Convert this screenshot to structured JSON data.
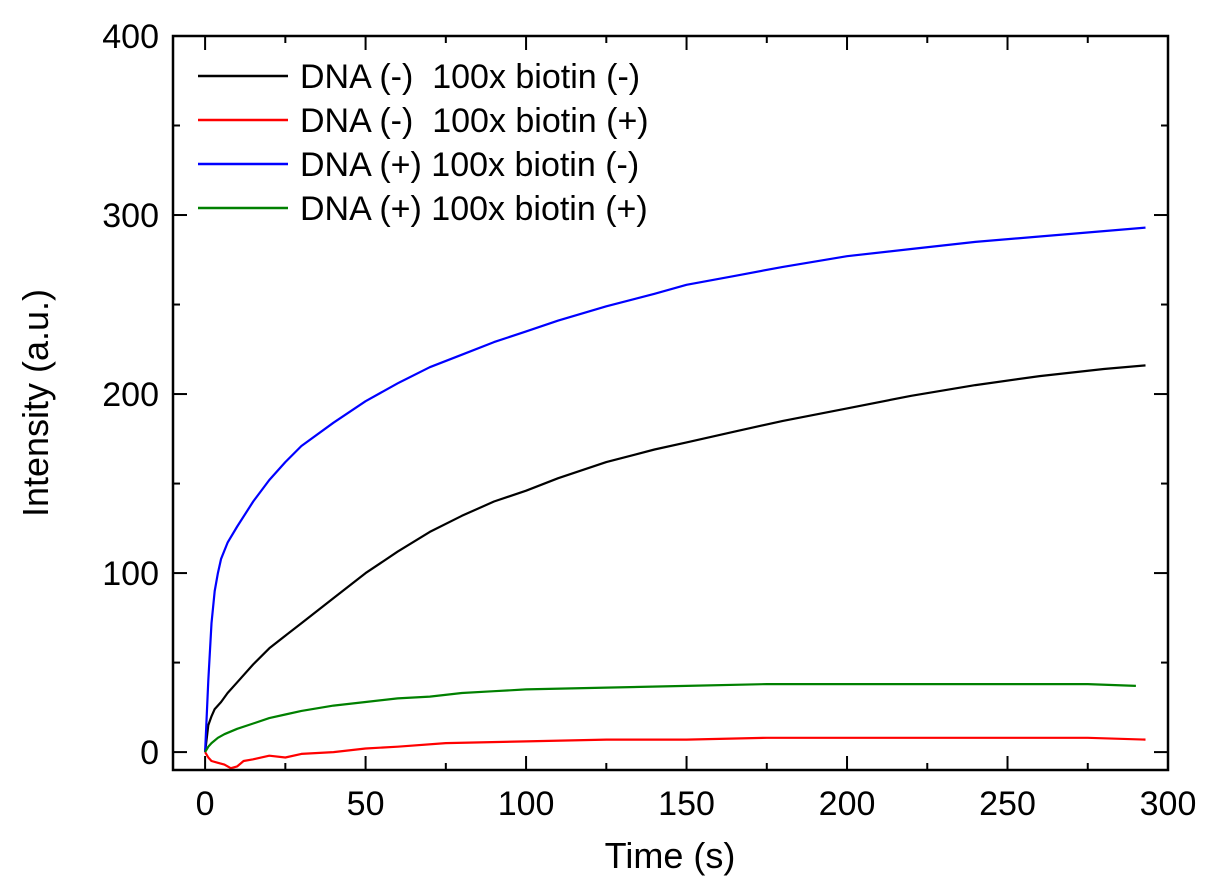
{
  "chart_data": {
    "type": "line",
    "xlabel": "Time (s)",
    "ylabel": "Intensity (a.u.)",
    "xlim": [
      -10,
      300
    ],
    "ylim": [
      -10,
      400
    ],
    "x_ticks": [
      0,
      50,
      100,
      150,
      200,
      250,
      300
    ],
    "x_tick_labels": [
      "0",
      "50",
      "100",
      "150",
      "200",
      "250",
      "300"
    ],
    "y_ticks": [
      0,
      100,
      200,
      300,
      400
    ],
    "y_tick_labels": [
      "0",
      "100",
      "200",
      "300",
      "400"
    ],
    "grid": false,
    "legend_position": "top-left",
    "series": [
      {
        "name": "DNA (-)  100x biotin (-)",
        "color": "#000000",
        "x": [
          0,
          1,
          2,
          3,
          5,
          7,
          10,
          15,
          20,
          25,
          30,
          40,
          50,
          60,
          70,
          80,
          90,
          100,
          110,
          125,
          140,
          150,
          165,
          180,
          200,
          220,
          240,
          260,
          280,
          293
        ],
        "y": [
          0,
          15,
          20,
          24,
          28,
          33,
          39,
          49,
          58,
          65,
          72,
          86,
          100,
          112,
          123,
          132,
          140,
          146,
          153,
          162,
          169,
          173,
          179,
          185,
          192,
          199,
          205,
          210,
          214,
          216
        ]
      },
      {
        "name": "DNA (-)  100x biotin (+)",
        "color": "#ff0000",
        "x": [
          0,
          1,
          2,
          4,
          6,
          8,
          10,
          12,
          15,
          20,
          25,
          30,
          40,
          50,
          60,
          75,
          100,
          125,
          150,
          175,
          200,
          225,
          250,
          275,
          293
        ],
        "y": [
          0,
          -3,
          -5,
          -6,
          -7,
          -9,
          -8,
          -5,
          -4,
          -2,
          -3,
          -1,
          0,
          2,
          3,
          5,
          6,
          7,
          7,
          8,
          8,
          8,
          8,
          8,
          7
        ]
      },
      {
        "name": "DNA (+) 100x biotin (-)",
        "color": "#0000ff",
        "x": [
          0,
          1,
          2,
          3,
          4,
          5,
          7,
          10,
          15,
          20,
          25,
          30,
          40,
          50,
          60,
          70,
          80,
          90,
          100,
          110,
          125,
          140,
          150,
          165,
          180,
          200,
          220,
          240,
          260,
          280,
          293
        ],
        "y": [
          0,
          40,
          72,
          90,
          100,
          108,
          117,
          126,
          140,
          152,
          162,
          171,
          184,
          196,
          206,
          215,
          222,
          229,
          235,
          241,
          249,
          256,
          261,
          266,
          271,
          277,
          281,
          285,
          288,
          291,
          293
        ]
      },
      {
        "name": "DNA (+) 100x biotin (+)",
        "color": "#008000",
        "x": [
          0,
          1,
          2,
          4,
          6,
          10,
          15,
          20,
          25,
          30,
          40,
          50,
          60,
          70,
          80,
          90,
          100,
          125,
          150,
          175,
          200,
          225,
          250,
          275,
          290
        ],
        "y": [
          0,
          3,
          5,
          8,
          10,
          13,
          16,
          19,
          21,
          23,
          26,
          28,
          30,
          31,
          33,
          34,
          35,
          36,
          37,
          38,
          38,
          38,
          38,
          38,
          37
        ]
      }
    ]
  }
}
